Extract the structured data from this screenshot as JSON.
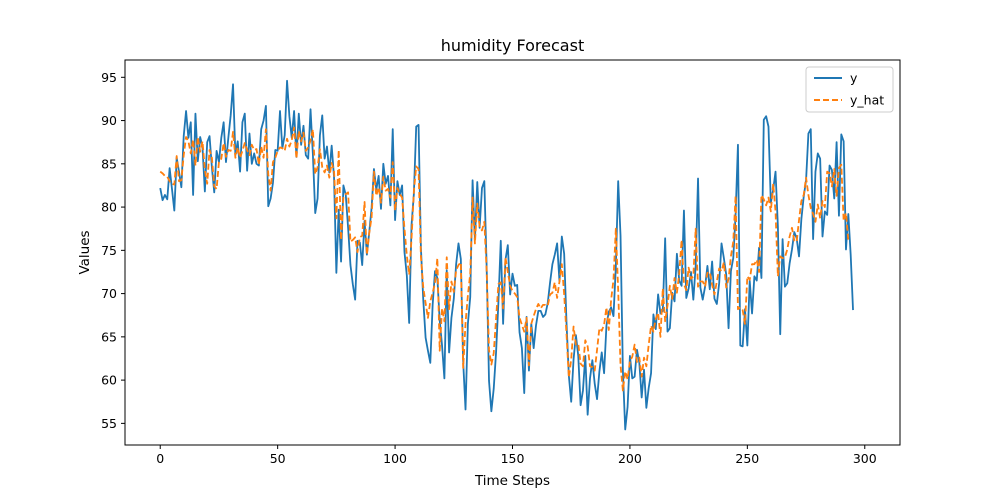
{
  "chart_data": {
    "type": "line",
    "title": "humidity Forecast",
    "xlabel": "Time Steps",
    "ylabel": "Values",
    "xlim": [
      -15,
      315
    ],
    "ylim": [
      52.5,
      97.0
    ],
    "x_ticks": [
      0,
      50,
      100,
      150,
      200,
      250,
      300
    ],
    "y_ticks": [
      55,
      60,
      65,
      70,
      75,
      80,
      85,
      90,
      95
    ],
    "grid": false,
    "legend_position": "top-right",
    "series": [
      {
        "name": "y",
        "color": "#1f77b4",
        "style": "solid",
        "x0": 0,
        "values": [
          82.2,
          80.8,
          81.4,
          80.9,
          84.5,
          82.1,
          79.6,
          85.7,
          84.1,
          82.3,
          88.2,
          91.1,
          88.0,
          89.8,
          81.4,
          90.8,
          85.3,
          88.1,
          86.9,
          81.8,
          87.5,
          88.2,
          84.6,
          81.7,
          86.5,
          85.2,
          88.0,
          89.8,
          85.2,
          88.0,
          90.6,
          94.2,
          86.0,
          87.6,
          84.1,
          89.8,
          90.8,
          84.2,
          88.5,
          85.0,
          86.2,
          85.0,
          84.8,
          89.0,
          90.0,
          91.7,
          80.1,
          81.0,
          82.8,
          86.6,
          86.5,
          91.1,
          86.8,
          88.3,
          94.6,
          90.5,
          88.0,
          91.1,
          85.8,
          90.8,
          87.2,
          89.4,
          86.0,
          85.6,
          91.3,
          86.1,
          79.3,
          81.0,
          88.3,
          90.6,
          85.6,
          87.0,
          84.0,
          87.1,
          83.5,
          72.4,
          79.7,
          73.7,
          82.5,
          81.4,
          77.6,
          73.3,
          71.1,
          69.3,
          76.1,
          75.9,
          73.3,
          78.4,
          74.5,
          77.1,
          79.9,
          84.4,
          82.0,
          83.6,
          79.8,
          85.0,
          82.7,
          83.6,
          80.2,
          89.0,
          78.5,
          83.0,
          81.4,
          82.5,
          74.8,
          72.1,
          66.6,
          77.9,
          81.5,
          89.3,
          89.5,
          75.3,
          69.3,
          64.9,
          63.4,
          62.0,
          68.7,
          72.6,
          71.8,
          66.9,
          64.0,
          60.2,
          72.7,
          63.2,
          67.2,
          69.4,
          73.4,
          75.8,
          74.0,
          62.1,
          56.6,
          66.5,
          69.6,
          83.1,
          76.2,
          82.9,
          77.6,
          82.2,
          83.0,
          73.0,
          59.9,
          56.4,
          59.0,
          63.2,
          69.0,
          76.1,
          66.5,
          73.9,
          75.6,
          69.9,
          72.3,
          70.9,
          71.0,
          65.5,
          63.7,
          58.5,
          67.3,
          61.1,
          66.5,
          63.7,
          66.3,
          68.0,
          68.0,
          67.3,
          67.6,
          68.9,
          71.3,
          73.4,
          74.5,
          75.8,
          71.4,
          76.6,
          74.6,
          66.6,
          60.5,
          57.5,
          62.4,
          65.2,
          62.8,
          57.1,
          58.8,
          62.8,
          56.0,
          60.2,
          62.3,
          59.6,
          57.8,
          61.0,
          63.2,
          60.8,
          66.3,
          67.9,
          68.4,
          67.4,
          73.1,
          83.0,
          76.7,
          61.1,
          54.3,
          56.9,
          62.8,
          60.2,
          60.4,
          63.5,
          62.0,
          58.0,
          61.2,
          56.8,
          59.1,
          60.8,
          67.6,
          65.9,
          69.9,
          67.7,
          68.0,
          76.4,
          65.6,
          66.0,
          70.1,
          69.1,
          74.6,
          71.5,
          70.9,
          79.6,
          69.5,
          70.6,
          72.5,
          69.3,
          73.2,
          83.3,
          70.7,
          69.3,
          70.8,
          73.2,
          70.5,
          73.7,
          69.4,
          68.8,
          71.2,
          75.8,
          74.1,
          72.2,
          66.0,
          72.6,
          74.1,
          79.2,
          87.2,
          64.0,
          63.9,
          68.2,
          64.0,
          71.5,
          67.7,
          72.0,
          71.5,
          75.3,
          71.8,
          90.1,
          90.5,
          89.3,
          80.5,
          82.0,
          84.1,
          77.8,
          65.3,
          76.3,
          70.8,
          71.2,
          73.5,
          75.1,
          77.1,
          76.4,
          74.3,
          78.6,
          81.2,
          83.1,
          88.5,
          89.0,
          76.3,
          84.1,
          86.2,
          85.6,
          76.6,
          79.5,
          79.1,
          84.8,
          84.3,
          81.0,
          87.5,
          79.0,
          88.4,
          87.6,
          75.1,
          79.2,
          74.5,
          68.1
        ]
      },
      {
        "name": "y_hat",
        "color": "#ff7f0e",
        "style": "dashed",
        "x0": 0,
        "values": [
          84.1,
          83.9,
          83.6,
          83.5,
          83.0,
          82.7,
          82.6,
          85.9,
          83.0,
          83.1,
          86.0,
          88.1,
          87.6,
          86.2,
          87.8,
          84.8,
          88.1,
          86.4,
          87.6,
          84.3,
          82.7,
          86.6,
          85.7,
          82.4,
          82.1,
          85.2,
          85.6,
          87.4,
          85.8,
          86.6,
          86.5,
          88.7,
          85.7,
          86.9,
          85.7,
          86.5,
          87.4,
          86.6,
          86.0,
          87.2,
          86.6,
          86.7,
          84.9,
          87.0,
          85.7,
          89.0,
          83.8,
          81.9,
          85.2,
          85.7,
          86.5,
          86.9,
          86.8,
          86.5,
          87.9,
          87.0,
          87.7,
          89.2,
          85.6,
          88.8,
          87.6,
          88.6,
          86.5,
          86.9,
          87.7,
          89.0,
          83.8,
          84.6,
          86.7,
          84.6,
          84.0,
          84.8,
          83.4,
          85.1,
          84.2,
          78.7,
          86.6,
          76.2,
          81.2,
          81.5,
          81.7,
          76.0,
          76.2,
          76.5,
          74.8,
          76.5,
          76.7,
          80.6,
          74.5,
          77.0,
          78.8,
          84.1,
          81.3,
          82.3,
          80.5,
          83.5,
          81.9,
          82.1,
          81.1,
          85.2,
          79.6,
          82.2,
          81.5,
          81.1,
          77.5,
          74.4,
          72.2,
          76.3,
          81.8,
          84.7,
          84.4,
          74.3,
          70.7,
          68.9,
          67.2,
          69.1,
          70.1,
          71.2,
          74.1,
          63.4,
          68.3,
          66.8,
          74.2,
          68.2,
          71.4,
          70.2,
          72.7,
          73.3,
          73.6,
          61.4,
          66.6,
          69.8,
          72.3,
          81.1,
          75.8,
          80.4,
          77.7,
          77.3,
          78.3,
          72.6,
          63.5,
          61.8,
          63.1,
          67.1,
          71.1,
          71.3,
          68.3,
          74.2,
          72.5,
          70.9,
          70.3,
          70.0,
          69.6,
          67.2,
          66.4,
          65.6,
          67.2,
          61.7,
          66.5,
          67.4,
          68.2,
          68.8,
          68.3,
          68.7,
          68.7,
          68.6,
          69.9,
          70.1,
          71.3,
          69.5,
          71.4,
          73.4,
          69.9,
          65.3,
          60.3,
          62.4,
          66.2,
          64.1,
          64.2,
          61.9,
          61.6,
          64.6,
          63.9,
          61.6,
          61.5,
          61.1,
          63.5,
          66.0,
          65.7,
          66.4,
          68.4,
          65.8,
          69.3,
          71.6,
          77.5,
          70.4,
          61.7,
          58.8,
          61.0,
          60.1,
          62.2,
          62.7,
          64.1,
          62.1,
          62.6,
          60.4,
          62.6,
          61.6,
          64.1,
          66.3,
          65.6,
          67.1,
          67.8,
          65.0,
          70.6,
          66.8,
          68.6,
          70.9,
          69.4,
          71.8,
          70.1,
          72.3,
          76.2,
          71.1,
          70.4,
          73.0,
          71.7,
          72.0,
          77.5,
          70.8,
          71.4,
          71.4,
          70.8,
          72.4,
          72.5,
          71.0,
          69.9,
          71.4,
          72.9,
          72.6,
          73.6,
          70.7,
          71.7,
          74.3,
          76.0,
          81.3,
          68.2,
          68.4,
          68.1,
          66.5,
          72.0,
          71.6,
          73.4,
          73.4,
          73.9,
          72.5,
          81.4,
          80.9,
          80.2,
          81.1,
          79.5,
          82.7,
          79.5,
          72.0,
          74.3,
          74.1,
          74.2,
          75.1,
          76.6,
          77.6,
          76.1,
          76.0,
          78.5,
          80.7,
          81.4,
          83.4,
          81.4,
          79.9,
          79.2,
          78.3,
          80.3,
          78.7,
          80.7,
          80.0,
          84.1,
          83.9,
          82.4,
          84.4,
          81.3,
          84.5,
          84.9,
          78.4,
          79.3,
          76.1
        ]
      }
    ]
  }
}
